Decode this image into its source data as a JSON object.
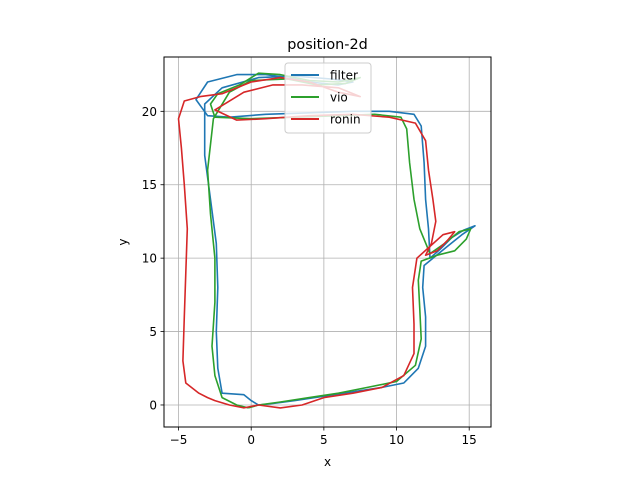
{
  "chart_data": {
    "type": "line",
    "title": "position-2d",
    "xlabel": "x",
    "ylabel": "y",
    "xlim": [
      -6.0,
      16.5
    ],
    "ylim": [
      -1.5,
      23.7
    ],
    "xticks": [
      -5,
      0,
      5,
      10,
      15
    ],
    "xtick_labels": [
      "−5",
      "0",
      "5",
      "10",
      "15"
    ],
    "yticks": [
      0,
      5,
      10,
      15,
      20
    ],
    "ytick_labels": [
      "0",
      "5",
      "10",
      "15",
      "20"
    ],
    "grid": true,
    "legend_position": "top-center",
    "series": [
      {
        "name": "filter",
        "color": "#1f77b4",
        "points": [
          [
            0.0,
            0.3
          ],
          [
            0.5,
            0.0
          ],
          [
            1.5,
            0.1
          ],
          [
            3.0,
            0.3
          ],
          [
            5.0,
            0.6
          ],
          [
            7.0,
            0.9
          ],
          [
            9.0,
            1.2
          ],
          [
            10.5,
            1.5
          ],
          [
            11.5,
            2.5
          ],
          [
            12.0,
            4.0
          ],
          [
            12.0,
            6.0
          ],
          [
            11.8,
            8.0
          ],
          [
            11.9,
            9.5
          ],
          [
            12.5,
            10.0
          ],
          [
            13.5,
            10.8
          ],
          [
            14.5,
            11.6
          ],
          [
            15.4,
            12.2
          ],
          [
            14.6,
            11.9
          ],
          [
            13.8,
            11.4
          ],
          [
            13.0,
            10.6
          ],
          [
            12.3,
            10.0
          ],
          [
            12.2,
            12.0
          ],
          [
            12.0,
            14.0
          ],
          [
            11.9,
            16.5
          ],
          [
            11.7,
            19.0
          ],
          [
            11.2,
            19.8
          ],
          [
            9.5,
            20.0
          ],
          [
            7.0,
            20.0
          ],
          [
            4.0,
            19.9
          ],
          [
            1.0,
            19.8
          ],
          [
            -1.5,
            19.6
          ],
          [
            -3.0,
            19.7
          ],
          [
            -3.8,
            20.8
          ],
          [
            -3.0,
            22.0
          ],
          [
            -1.0,
            22.5
          ],
          [
            1.0,
            22.5
          ],
          [
            2.5,
            22.3
          ],
          [
            4.0,
            22.0
          ],
          [
            6.0,
            21.8
          ],
          [
            7.0,
            22.0
          ],
          [
            5.5,
            22.2
          ],
          [
            3.0,
            22.4
          ],
          [
            0.5,
            22.3
          ],
          [
            -2.0,
            21.6
          ],
          [
            -3.2,
            20.5
          ],
          [
            -3.2,
            17.0
          ],
          [
            -2.8,
            14.0
          ],
          [
            -2.4,
            11.0
          ],
          [
            -2.3,
            8.0
          ],
          [
            -2.4,
            5.0
          ],
          [
            -2.3,
            2.5
          ],
          [
            -2.0,
            0.8
          ],
          [
            -0.5,
            0.7
          ],
          [
            0.0,
            0.3
          ]
        ]
      },
      {
        "name": "vio",
        "color": "#2ca02c",
        "points": [
          [
            -0.2,
            -0.2
          ],
          [
            0.5,
            0.0
          ],
          [
            2.0,
            0.2
          ],
          [
            4.0,
            0.5
          ],
          [
            6.0,
            0.8
          ],
          [
            8.0,
            1.2
          ],
          [
            10.0,
            1.6
          ],
          [
            11.3,
            2.7
          ],
          [
            11.7,
            4.5
          ],
          [
            11.6,
            6.5
          ],
          [
            11.5,
            8.5
          ],
          [
            11.7,
            9.8
          ],
          [
            12.8,
            10.2
          ],
          [
            14.0,
            10.5
          ],
          [
            14.8,
            11.3
          ],
          [
            15.1,
            12.0
          ],
          [
            14.3,
            11.8
          ],
          [
            13.3,
            11.0
          ],
          [
            12.3,
            10.3
          ],
          [
            11.6,
            12.0
          ],
          [
            11.2,
            14.0
          ],
          [
            10.9,
            16.5
          ],
          [
            10.7,
            18.8
          ],
          [
            10.3,
            19.6
          ],
          [
            8.5,
            19.8
          ],
          [
            6.0,
            19.7
          ],
          [
            3.0,
            19.6
          ],
          [
            0.0,
            19.5
          ],
          [
            -2.5,
            19.6
          ],
          [
            -2.8,
            20.5
          ],
          [
            -2.3,
            21.2
          ],
          [
            -0.8,
            21.8
          ],
          [
            0.5,
            22.6
          ],
          [
            2.0,
            22.5
          ],
          [
            4.0,
            22.1
          ],
          [
            6.0,
            22.0
          ],
          [
            7.5,
            22.3
          ],
          [
            6.5,
            21.9
          ],
          [
            4.5,
            21.8
          ],
          [
            2.5,
            22.2
          ],
          [
            0.0,
            22.1
          ],
          [
            -1.5,
            21.3
          ],
          [
            -2.6,
            19.5
          ],
          [
            -3.0,
            16.0
          ],
          [
            -2.8,
            13.0
          ],
          [
            -2.5,
            10.0
          ],
          [
            -2.5,
            7.0
          ],
          [
            -2.7,
            4.0
          ],
          [
            -2.5,
            2.0
          ],
          [
            -2.0,
            0.5
          ],
          [
            -1.0,
            0.0
          ],
          [
            -0.2,
            -0.2
          ]
        ]
      },
      {
        "name": "ronin",
        "color": "#d62728",
        "points": [
          [
            -3.0,
            0.5
          ],
          [
            -3.6,
            0.8
          ],
          [
            -4.5,
            1.5
          ],
          [
            -4.7,
            3.0
          ],
          [
            -4.6,
            6.0
          ],
          [
            -4.5,
            9.0
          ],
          [
            -4.4,
            12.0
          ],
          [
            -4.6,
            15.0
          ],
          [
            -4.8,
            17.5
          ],
          [
            -5.0,
            19.5
          ],
          [
            -4.6,
            20.7
          ],
          [
            -3.5,
            21.0
          ],
          [
            -2.0,
            21.2
          ],
          [
            0.0,
            22.0
          ],
          [
            2.0,
            22.3
          ],
          [
            4.0,
            22.0
          ],
          [
            6.0,
            21.3
          ],
          [
            7.5,
            21.0
          ],
          [
            6.0,
            21.6
          ],
          [
            3.5,
            21.8
          ],
          [
            1.5,
            21.8
          ],
          [
            -0.5,
            21.3
          ],
          [
            -2.5,
            20.1
          ],
          [
            -1.0,
            19.4
          ],
          [
            1.0,
            19.5
          ],
          [
            4.0,
            19.7
          ],
          [
            7.0,
            19.8
          ],
          [
            9.5,
            19.6
          ],
          [
            11.3,
            19.2
          ],
          [
            12.0,
            18.0
          ],
          [
            12.2,
            16.0
          ],
          [
            12.5,
            14.0
          ],
          [
            12.7,
            12.5
          ],
          [
            12.4,
            11.0
          ],
          [
            12.0,
            10.2
          ],
          [
            12.8,
            10.5
          ],
          [
            13.5,
            11.2
          ],
          [
            14.0,
            11.8
          ],
          [
            13.2,
            11.6
          ],
          [
            12.3,
            10.8
          ],
          [
            11.4,
            10.0
          ],
          [
            11.1,
            8.0
          ],
          [
            11.2,
            5.5
          ],
          [
            11.2,
            3.5
          ],
          [
            10.5,
            2.0
          ],
          [
            9.0,
            1.2
          ],
          [
            7.0,
            0.8
          ],
          [
            5.0,
            0.5
          ],
          [
            3.5,
            0.0
          ],
          [
            2.0,
            -0.2
          ],
          [
            0.5,
            0.0
          ],
          [
            -0.5,
            -0.2
          ],
          [
            -1.5,
            0.0
          ],
          [
            -2.5,
            0.3
          ],
          [
            -3.0,
            0.5
          ]
        ]
      }
    ]
  }
}
